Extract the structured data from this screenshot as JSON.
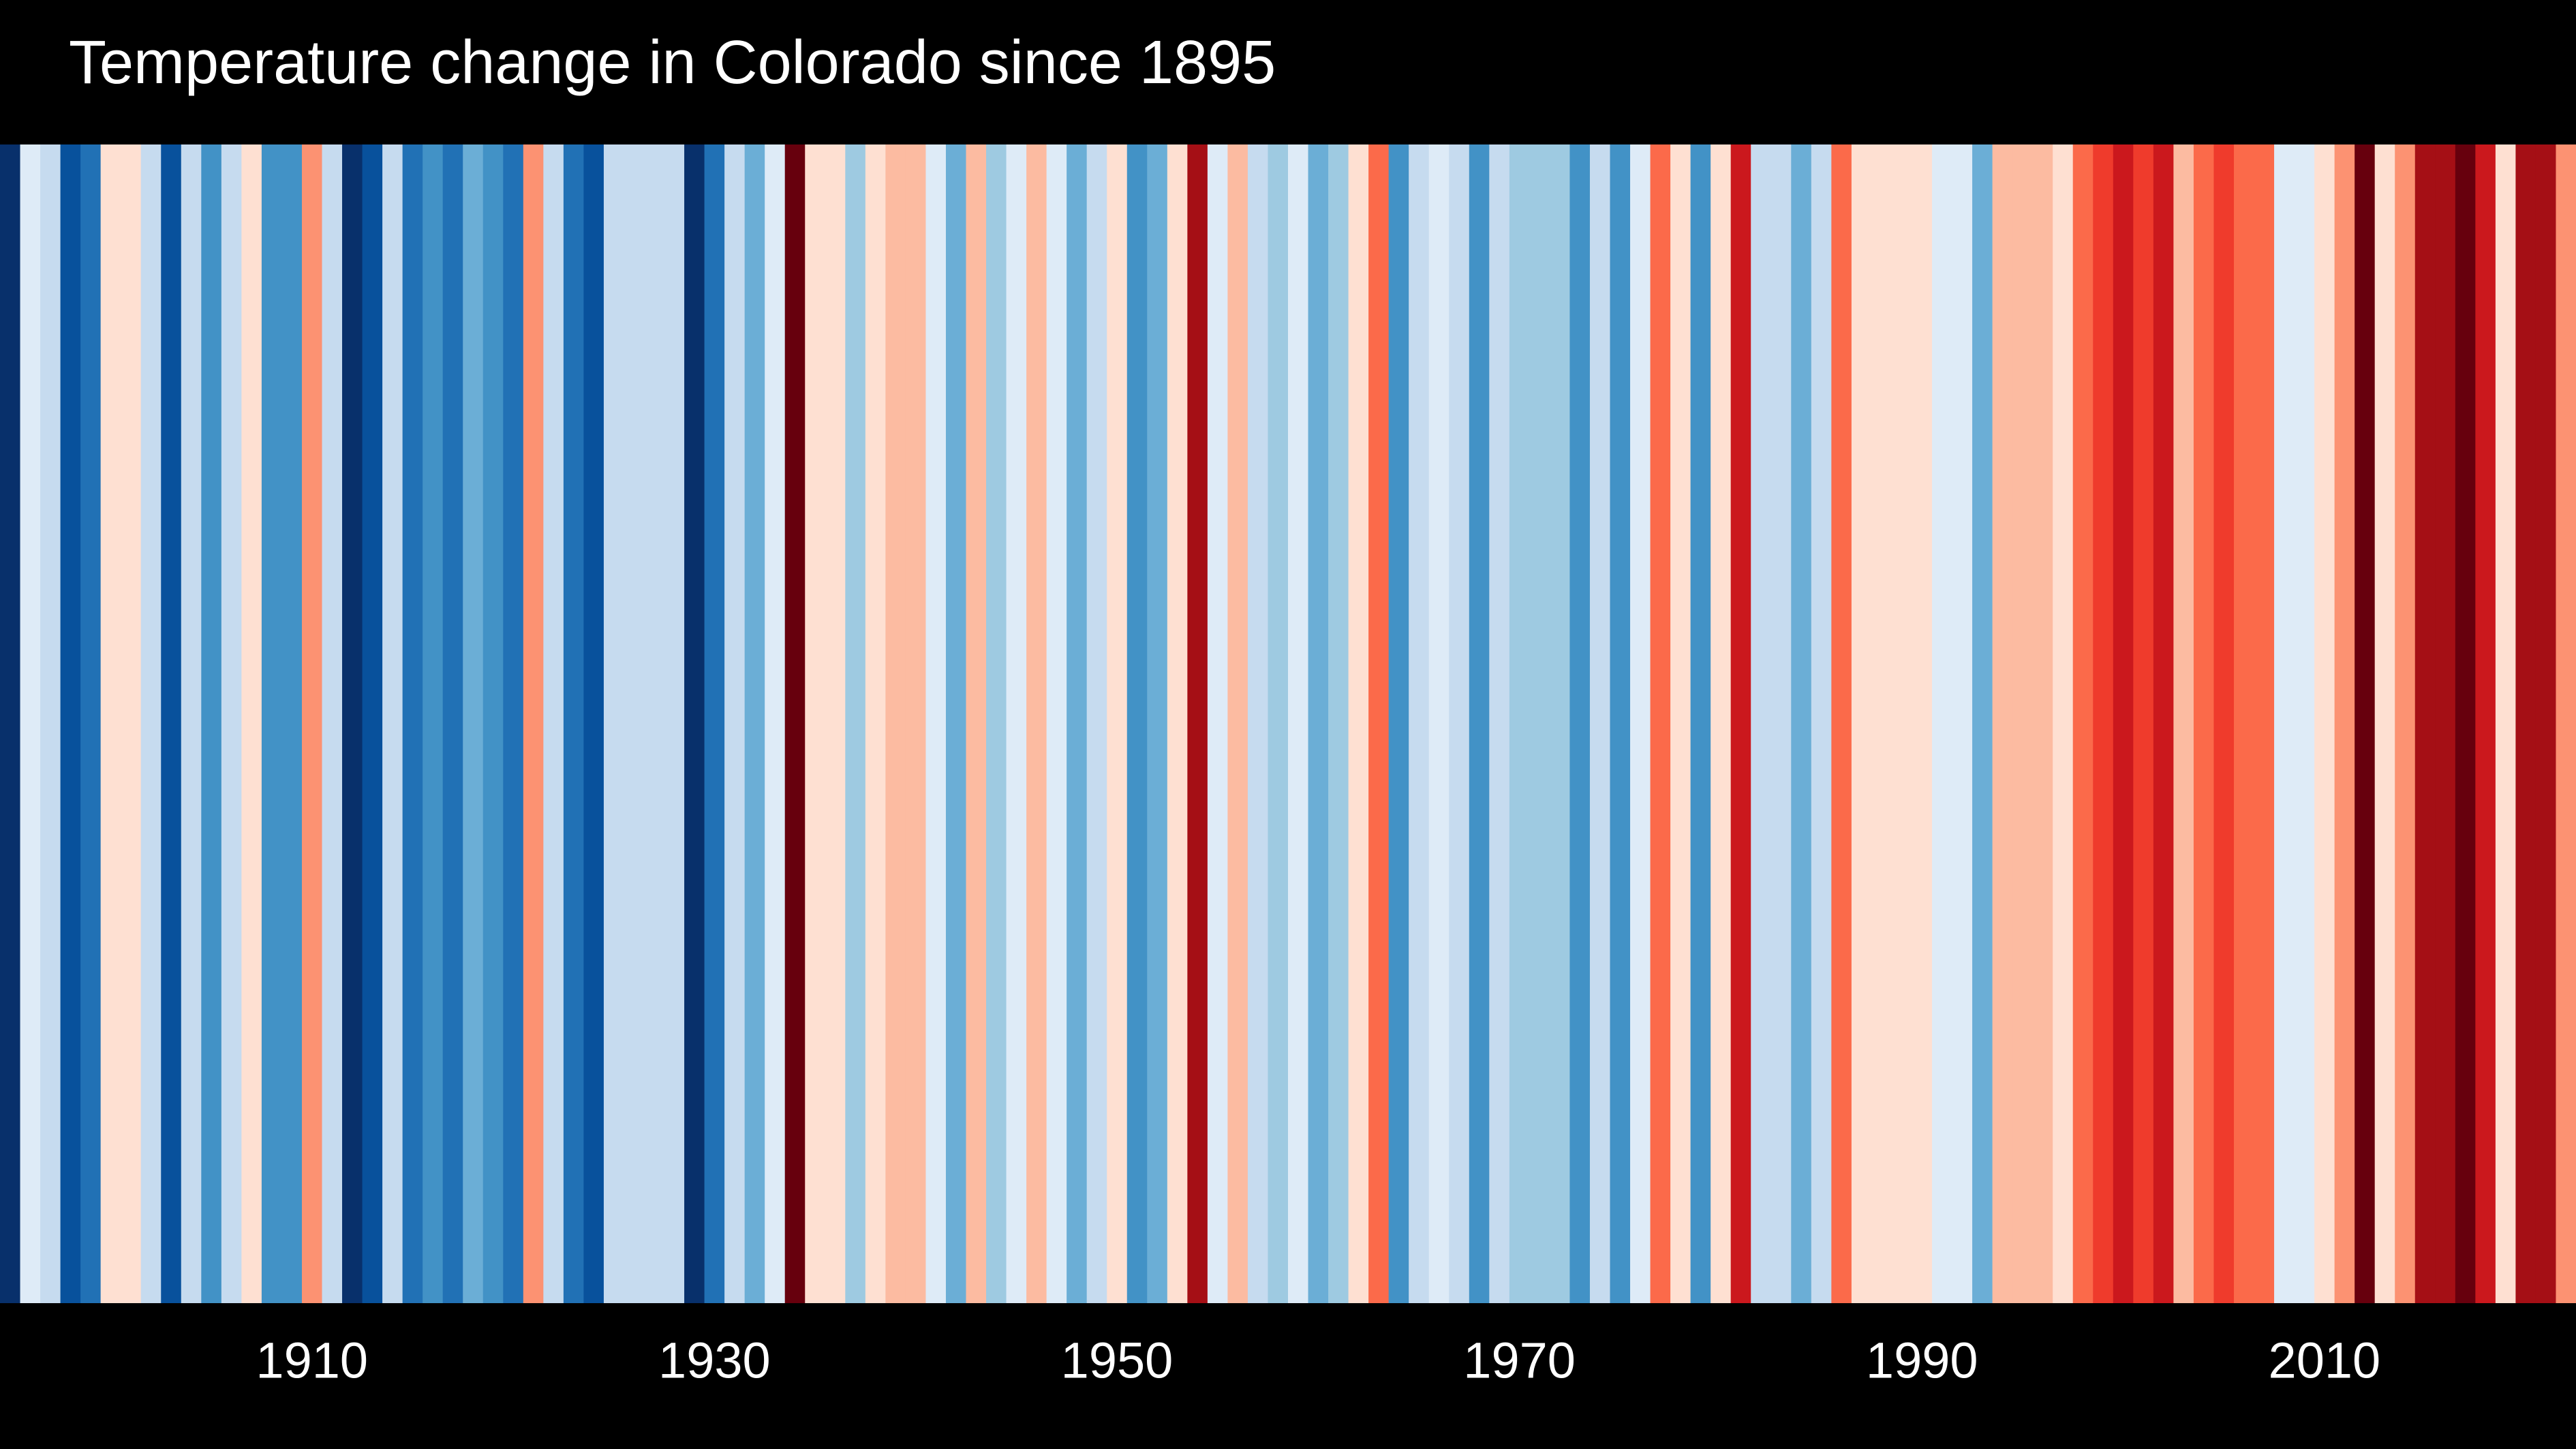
{
  "chart_data": {
    "type": "stripes",
    "title": "Temperature change in Colorado since 1895",
    "xlim": [
      1895,
      2023
    ],
    "xticks": [
      1910,
      1930,
      1950,
      1970,
      1990,
      2010
    ],
    "x": [
      1895,
      1896,
      1897,
      1898,
      1899,
      1900,
      1901,
      1902,
      1903,
      1904,
      1905,
      1906,
      1907,
      1908,
      1909,
      1910,
      1911,
      1912,
      1913,
      1914,
      1915,
      1916,
      1917,
      1918,
      1919,
      1920,
      1921,
      1922,
      1923,
      1924,
      1925,
      1926,
      1927,
      1928,
      1929,
      1930,
      1931,
      1932,
      1933,
      1934,
      1935,
      1936,
      1937,
      1938,
      1939,
      1940,
      1941,
      1942,
      1943,
      1944,
      1945,
      1946,
      1947,
      1948,
      1949,
      1950,
      1951,
      1952,
      1953,
      1954,
      1955,
      1956,
      1957,
      1958,
      1959,
      1960,
      1961,
      1962,
      1963,
      1964,
      1965,
      1966,
      1967,
      1968,
      1969,
      1970,
      1971,
      1972,
      1973,
      1974,
      1975,
      1976,
      1977,
      1978,
      1979,
      1980,
      1981,
      1982,
      1983,
      1984,
      1985,
      1986,
      1987,
      1988,
      1989,
      1990,
      1991,
      1992,
      1993,
      1994,
      1995,
      1996,
      1997,
      1998,
      1999,
      2000,
      2001,
      2002,
      2003,
      2004,
      2005,
      2006,
      2007,
      2008,
      2009,
      2010,
      2011,
      2012,
      2013,
      2014,
      2015,
      2016,
      2017,
      2018,
      2019,
      2020,
      2021,
      2022
    ],
    "colors": [
      "#08306b",
      "#deebf7",
      "#c6dbef",
      "#08519c",
      "#2171b5",
      "#fee0d2",
      "#fee0d2",
      "#c6dbef",
      "#08519c",
      "#c6dbef",
      "#4292c6",
      "#c6dbef",
      "#fee0d2",
      "#4292c6",
      "#4292c6",
      "#fc9272",
      "#c6dbef",
      "#08306b",
      "#08519c",
      "#c6dbef",
      "#2171b5",
      "#4292c6",
      "#2171b5",
      "#6baed6",
      "#4292c6",
      "#2171b5",
      "#fc9272",
      "#c6dbef",
      "#2171b5",
      "#08519c",
      "#c6dbef",
      "#c6dbef",
      "#c6dbef",
      "#c6dbef",
      "#08306b",
      "#2171b5",
      "#c6dbef",
      "#6baed6",
      "#deebf7",
      "#67000d",
      "#fee0d2",
      "#fee0d2",
      "#9ecae1",
      "#fee0d2",
      "#fcbba1",
      "#fcbba1",
      "#deebf7",
      "#6baed6",
      "#fcbba1",
      "#9ecae1",
      "#deebf7",
      "#fcbba1",
      "#deebf7",
      "#6baed6",
      "#c6dbef",
      "#fee0d2",
      "#4292c6",
      "#6baed6",
      "#fee0d2",
      "#a50f15",
      "#deebf7",
      "#fcbba1",
      "#c6dbef",
      "#9ecae1",
      "#deebf7",
      "#6baed6",
      "#9ecae1",
      "#fee0d2",
      "#fb6a4a",
      "#4292c6",
      "#c6dbef",
      "#deebf7",
      "#c6dbef",
      "#4292c6",
      "#c6dbef",
      "#9ecae1",
      "#9ecae1",
      "#9ecae1",
      "#4292c6",
      "#c6dbef",
      "#4292c6",
      "#deebf7",
      "#fb6a4a",
      "#fee0d2",
      "#4292c6",
      "#fee0d2",
      "#cb181d",
      "#c6dbef",
      "#c6dbef",
      "#6baed6",
      "#c6dbef",
      "#fb6a4a",
      "#fee0d2",
      "#fee0d2",
      "#fee0d2",
      "#fee0d2",
      "#deebf7",
      "#deebf7",
      "#6baed6",
      "#fcbba1",
      "#fcbba1",
      "#fcbba1",
      "#fee0d2",
      "#fb6a4a",
      "#ef3b2c",
      "#cb181d",
      "#ef3b2c",
      "#cb181d",
      "#fcbba1",
      "#fb6a4a",
      "#ef3b2c",
      "#fb6a4a",
      "#fb6a4a",
      "#deebf7",
      "#deebf7",
      "#fee0d2",
      "#fc9272",
      "#67000d",
      "#fee0d2",
      "#fc9272",
      "#a50f15",
      "#a50f15",
      "#67000d",
      "#cb181d",
      "#fee0d2",
      "#a50f15",
      "#a50f15",
      "#fc9272"
    ]
  }
}
